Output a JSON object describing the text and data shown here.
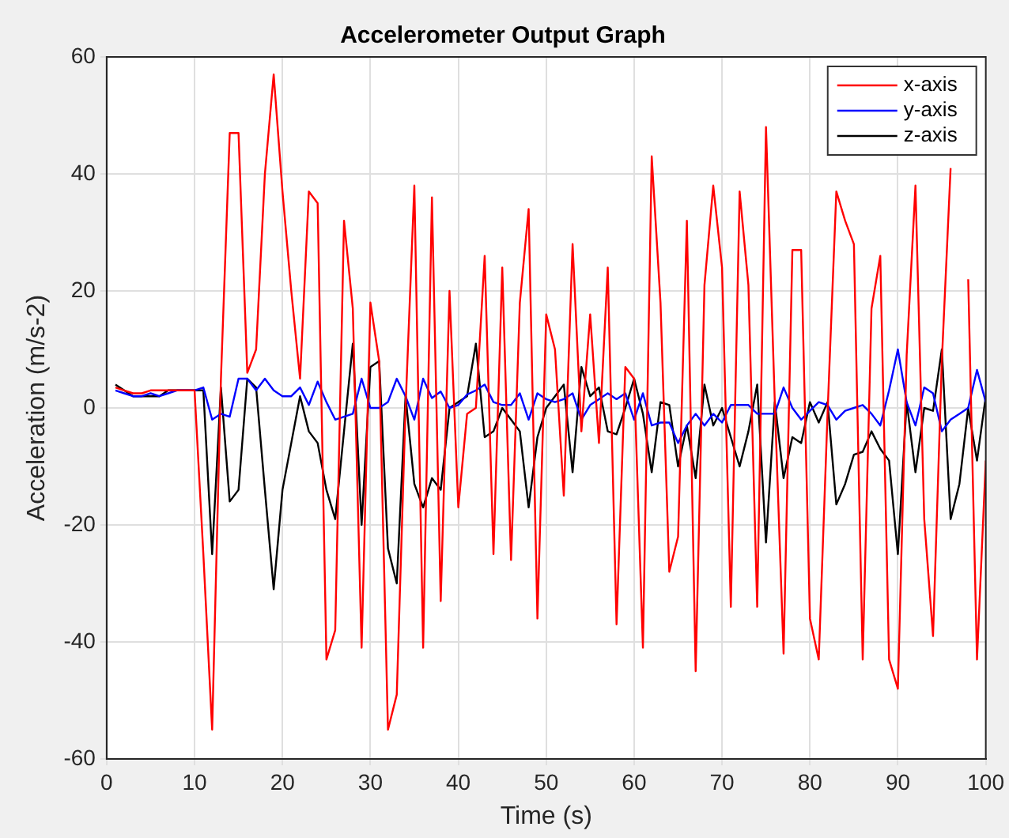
{
  "chart_data": {
    "type": "line",
    "title": "Accelerometer Output Graph",
    "xlabel": "Time (s)",
    "ylabel": "Acceleration (m/s-2)",
    "x": [
      1,
      2,
      3,
      4,
      5,
      6,
      7,
      8,
      9,
      10,
      11,
      12,
      13,
      14,
      15,
      16,
      17,
      18,
      19,
      20,
      21,
      22,
      23,
      24,
      25,
      26,
      27,
      28,
      29,
      30,
      31,
      32,
      33,
      34,
      35,
      36,
      37,
      38,
      39,
      40,
      41,
      42,
      43,
      44,
      45,
      46,
      47,
      48,
      49,
      50,
      51,
      52,
      53,
      54,
      55,
      56,
      57,
      58,
      59,
      60,
      61,
      62,
      63,
      64,
      65,
      66,
      67,
      68,
      69,
      70,
      71,
      72,
      73,
      74,
      75,
      76,
      77,
      78,
      79,
      80,
      81,
      82,
      83,
      84,
      85,
      86,
      87,
      88,
      89,
      90,
      91,
      92,
      93,
      94,
      95,
      96,
      97,
      98,
      99,
      100
    ],
    "series": [
      {
        "name": "x-axis",
        "color": "#ff0000",
        "values": [
          3.5,
          3,
          2.5,
          2.5,
          3,
          3,
          3,
          3,
          3,
          3,
          -25,
          -55,
          5,
          47,
          47,
          6,
          10,
          40,
          57,
          37,
          20,
          5,
          37,
          35,
          -43,
          -38,
          32,
          17,
          -41,
          18,
          8,
          -55,
          -49,
          0,
          38,
          -41,
          36,
          -33,
          20,
          -17,
          -1,
          0,
          26,
          -25,
          24,
          -26,
          18,
          34,
          -36,
          16,
          10,
          -15,
          28,
          -4,
          16,
          -6,
          24,
          -37,
          7,
          5,
          -41,
          43,
          18,
          -28,
          -22,
          32,
          -45,
          21,
          38,
          24,
          -34,
          37,
          21,
          -34,
          48,
          1,
          -42,
          27,
          27,
          -36,
          -43,
          -1,
          37,
          32,
          28,
          -43,
          17,
          26,
          -43,
          -48,
          9,
          38,
          -19,
          -39,
          8,
          41,
          null,
          22,
          -43,
          -9
        ]
      },
      {
        "name": "y-axis",
        "color": "#0000ff",
        "values": [
          3,
          2.5,
          2,
          2,
          2.5,
          2,
          2.5,
          3,
          3,
          3,
          3.5,
          -2,
          -1,
          -1.5,
          5,
          5,
          3,
          5,
          3,
          2,
          2,
          3.5,
          0.5,
          4.5,
          1,
          -2,
          -1.5,
          -1,
          5,
          0,
          0,
          1,
          5,
          2,
          -2,
          5,
          1.7,
          2.8,
          0,
          0.5,
          2.3,
          3,
          4,
          1,
          0.5,
          0.5,
          2.5,
          -2,
          2.5,
          1.5,
          1,
          1.5,
          2.5,
          -2,
          0.5,
          1.5,
          2.5,
          1.5,
          2.5,
          -2,
          2.5,
          -3,
          -2.5,
          -2.5,
          -6,
          -3,
          -1,
          -3,
          -1,
          -2.5,
          0.5,
          0.5,
          0.5,
          -1,
          -1,
          -1,
          3.5,
          0,
          -2,
          -0.5,
          1,
          0.5,
          -2,
          -0.5,
          0,
          0.5,
          -1,
          -3,
          3,
          10,
          1,
          -3,
          3.5,
          2.5,
          -4,
          -2,
          -1,
          0,
          6.5,
          1
        ]
      },
      {
        "name": "z-axis",
        "color": "#000000",
        "values": [
          4,
          3,
          2,
          2,
          2,
          2,
          3,
          3,
          3,
          3,
          3,
          -25,
          3.5,
          -16,
          -14,
          5,
          3.5,
          -14,
          -31,
          -14,
          -6,
          2,
          -4,
          -6,
          -14,
          -19,
          -4,
          11,
          -20,
          7,
          8,
          -24,
          -30,
          2,
          -13,
          -17,
          -12,
          -14,
          0,
          1,
          2,
          11,
          -5,
          -4,
          0,
          -2,
          -4,
          -17,
          -5,
          0,
          2,
          4,
          -11,
          7,
          2,
          3.5,
          -4,
          -4.5,
          0,
          5,
          -1,
          -11,
          1,
          0.5,
          -10,
          -3,
          -12,
          4,
          -3,
          0,
          -5,
          -10,
          -4,
          4,
          -23,
          1,
          -12,
          -5,
          -6,
          1,
          -2.5,
          1,
          -16.5,
          -13,
          -8,
          -7.5,
          -4,
          -7,
          -9,
          -25,
          1,
          -11,
          0,
          -0.5,
          10,
          -19,
          -13,
          0,
          -9,
          2
        ]
      }
    ],
    "xlim": [
      0,
      100
    ],
    "xticks": [
      0,
      10,
      20,
      30,
      40,
      50,
      60,
      70,
      80,
      90,
      100
    ],
    "ylim": [
      -60,
      60
    ],
    "yticks": [
      -60,
      -40,
      -20,
      0,
      20,
      40,
      60
    ],
    "grid": true,
    "legend": "top right",
    "marker": "none",
    "line_style": "solid"
  }
}
